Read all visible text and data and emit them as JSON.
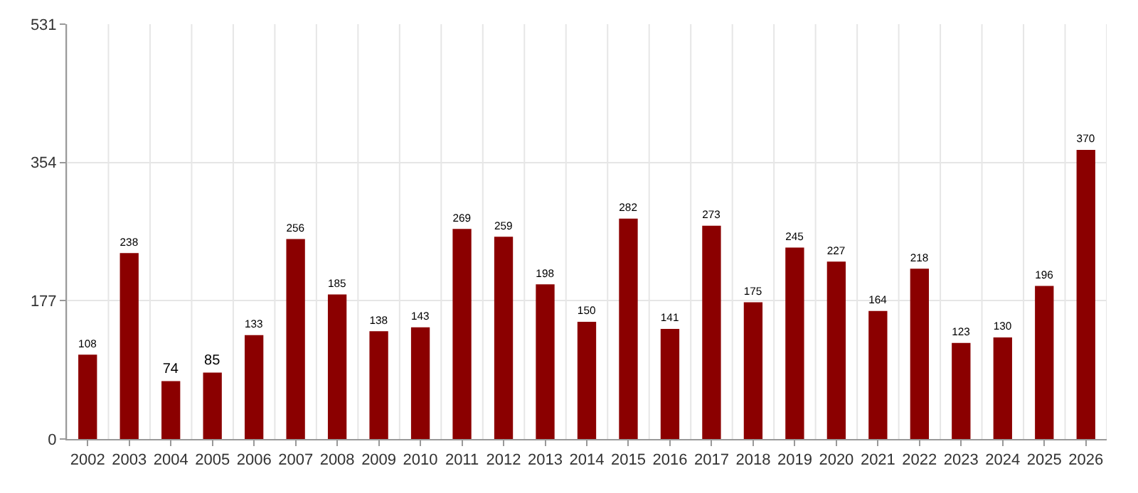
{
  "chart_data": {
    "type": "bar",
    "categories": [
      "2002",
      "2003",
      "2004",
      "2005",
      "2006",
      "2007",
      "2008",
      "2009",
      "2010",
      "2011",
      "2012",
      "2013",
      "2014",
      "2015",
      "2016",
      "2017",
      "2018",
      "2019",
      "2020",
      "2021",
      "2022",
      "2023",
      "2024",
      "2025",
      "2026"
    ],
    "values": [
      108,
      238,
      74,
      85,
      133,
      256,
      185,
      138,
      143,
      269,
      259,
      198,
      150,
      282,
      141,
      273,
      175,
      245,
      227,
      164,
      218,
      123,
      130,
      196,
      370
    ],
    "color": "#8b0000",
    "ylim": [
      0,
      531
    ],
    "yticks": [
      0,
      177,
      354,
      531
    ],
    "grid": true,
    "data_labels": true
  }
}
